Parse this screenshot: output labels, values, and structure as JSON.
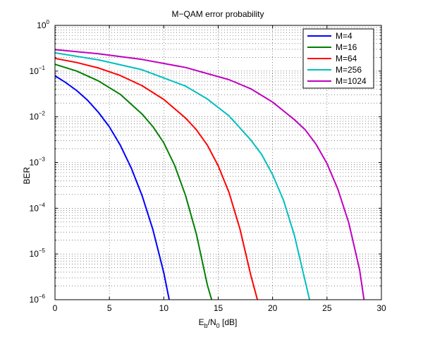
{
  "chart_data": {
    "type": "line",
    "title": "M−QAM error probability",
    "xlabel": {
      "base": "E",
      "sub1": "b",
      "mid": "/N",
      "sub2": "0",
      "tail": " [dB]"
    },
    "ylabel": "BER",
    "xlim": [
      0,
      30
    ],
    "ylim": [
      1e-06,
      1
    ],
    "yscale": "log",
    "grid": true,
    "grid_style": "dotted",
    "legend_position": "top-right",
    "x_ticks": [
      "0",
      "5",
      "10",
      "15",
      "20",
      "25",
      "30"
    ],
    "y_ticks": [
      {
        "base": "10",
        "exp": "0"
      },
      {
        "base": "10",
        "exp": "−1"
      },
      {
        "base": "10",
        "exp": "−2"
      },
      {
        "base": "10",
        "exp": "−3"
      },
      {
        "base": "10",
        "exp": "−4"
      },
      {
        "base": "10",
        "exp": "−5"
      },
      {
        "base": "10",
        "exp": "−6"
      }
    ],
    "series": [
      {
        "name": "M=4",
        "color": "#0000ff",
        "x": [
          0,
          1,
          2,
          3,
          4,
          5,
          6,
          7,
          8,
          9,
          10,
          10.5
        ],
        "y": [
          0.079,
          0.056,
          0.0375,
          0.0229,
          0.0125,
          0.006,
          0.0024,
          0.00077,
          0.00019,
          3.4e-05,
          3.9e-06,
          1e-06
        ]
      },
      {
        "name": "M=16",
        "color": "#008000",
        "x": [
          0,
          2,
          4,
          6,
          8,
          9,
          10,
          11,
          12,
          13,
          14,
          14.4
        ],
        "y": [
          0.141,
          0.1,
          0.061,
          0.031,
          0.0115,
          0.0061,
          0.0027,
          0.00086,
          0.00019,
          2.7e-05,
          2.1e-06,
          1e-06
        ]
      },
      {
        "name": "M=64",
        "color": "#ff0000",
        "x": [
          0,
          2,
          4,
          6,
          8,
          10,
          12,
          13,
          14,
          15,
          16,
          17,
          18,
          18.6
        ],
        "y": [
          0.19,
          0.154,
          0.117,
          0.08,
          0.048,
          0.024,
          0.0094,
          0.0052,
          0.0024,
          0.00085,
          0.00022,
          3.5e-05,
          3.4e-06,
          1e-06
        ]
      },
      {
        "name": "M=256",
        "color": "#00bfbf",
        "x": [
          0,
          4,
          8,
          12,
          14,
          16,
          18,
          19,
          20,
          21,
          22,
          23,
          23.4
        ],
        "y": [
          0.251,
          0.176,
          0.107,
          0.047,
          0.0245,
          0.0105,
          0.0031,
          0.0015,
          0.00054,
          0.00015,
          2.6e-05,
          2.5e-06,
          1e-06
        ]
      },
      {
        "name": "M=1024",
        "color": "#bf00bf",
        "x": [
          0,
          4,
          8,
          12,
          16,
          18,
          20,
          22,
          23,
          24,
          25,
          26,
          27,
          28,
          28.4
        ],
        "y": [
          0.295,
          0.24,
          0.18,
          0.12,
          0.065,
          0.041,
          0.021,
          0.0087,
          0.0052,
          0.0025,
          0.00095,
          0.00026,
          4.8e-05,
          4.5e-06,
          1e-06
        ]
      }
    ]
  }
}
